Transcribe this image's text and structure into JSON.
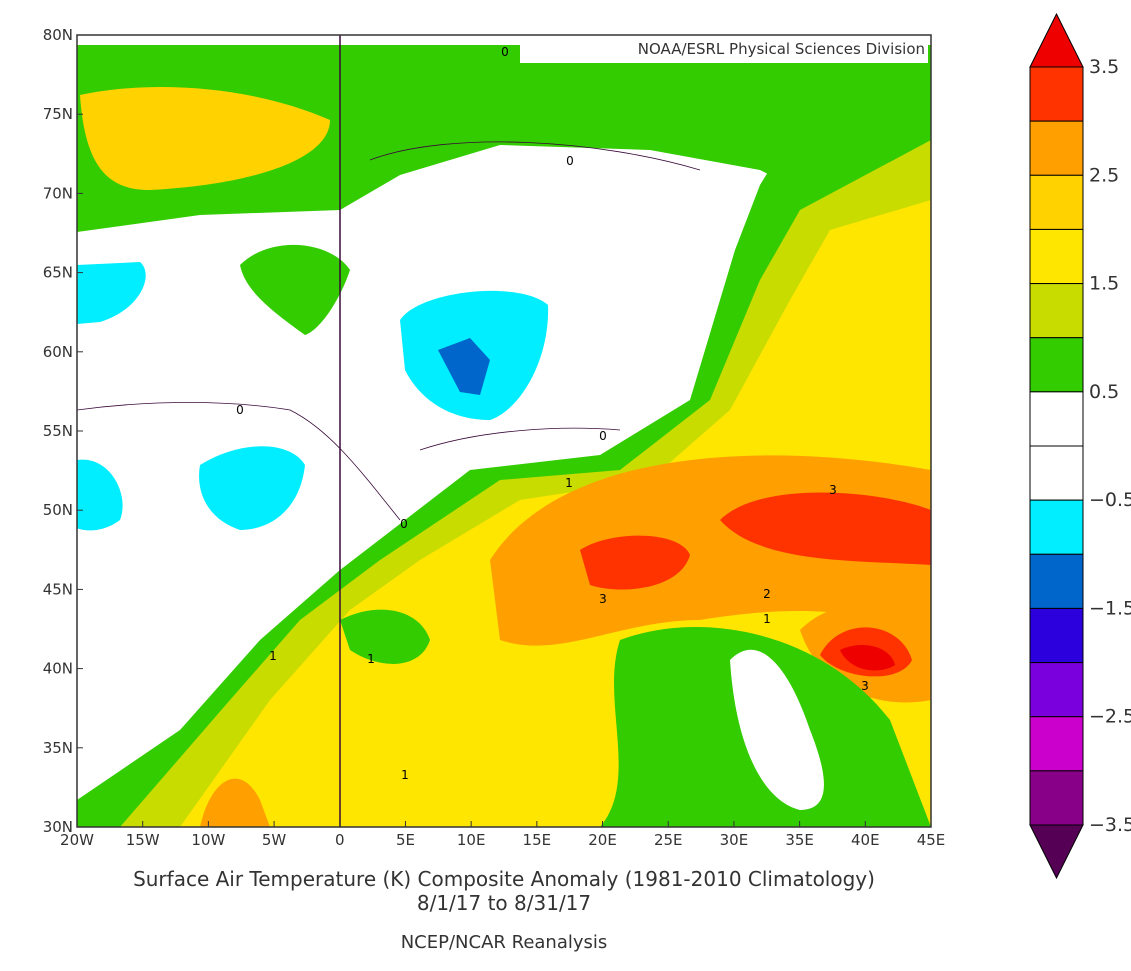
{
  "credit": "NOAA/ESRL Physical Sciences Division",
  "title": "Surface Air Temperature (K) Composite Anomaly (1981-2010 Climatology)",
  "dates": "8/1/17  to 8/31/17",
  "source": "NCEP/NCAR Reanalysis",
  "lat_labels": [
    "80N",
    "75N",
    "70N",
    "65N",
    "60N",
    "55N",
    "50N",
    "45N",
    "40N",
    "35N",
    "30N"
  ],
  "lon_labels": [
    "20W",
    "15W",
    "10W",
    "5W",
    "0",
    "5E",
    "10E",
    "15E",
    "20E",
    "25E",
    "30E",
    "35E",
    "40E",
    "45E"
  ],
  "colorbar": {
    "labels": [
      "3.5",
      "2.5",
      "1.5",
      "0.5",
      "−0.5",
      "−1.5",
      "−2.5",
      "−3.5"
    ],
    "colors": [
      "#ff3300",
      "#ffa000",
      "#ffd200",
      "#ffe600",
      "#c8dc00",
      "#33cc00",
      "#ffffff",
      "#ffffff",
      "#00eeff",
      "#0066cc",
      "#2b00dd",
      "#7a00dd",
      "#cc00cc",
      "#880088"
    ],
    "top_color": "#ee0000",
    "bottom_color": "#550055"
  },
  "contour_labels": [
    "0",
    "0",
    "0",
    "0",
    "0",
    "1",
    "1",
    "1",
    "1",
    "1",
    "2",
    "3",
    "3",
    "3"
  ]
}
